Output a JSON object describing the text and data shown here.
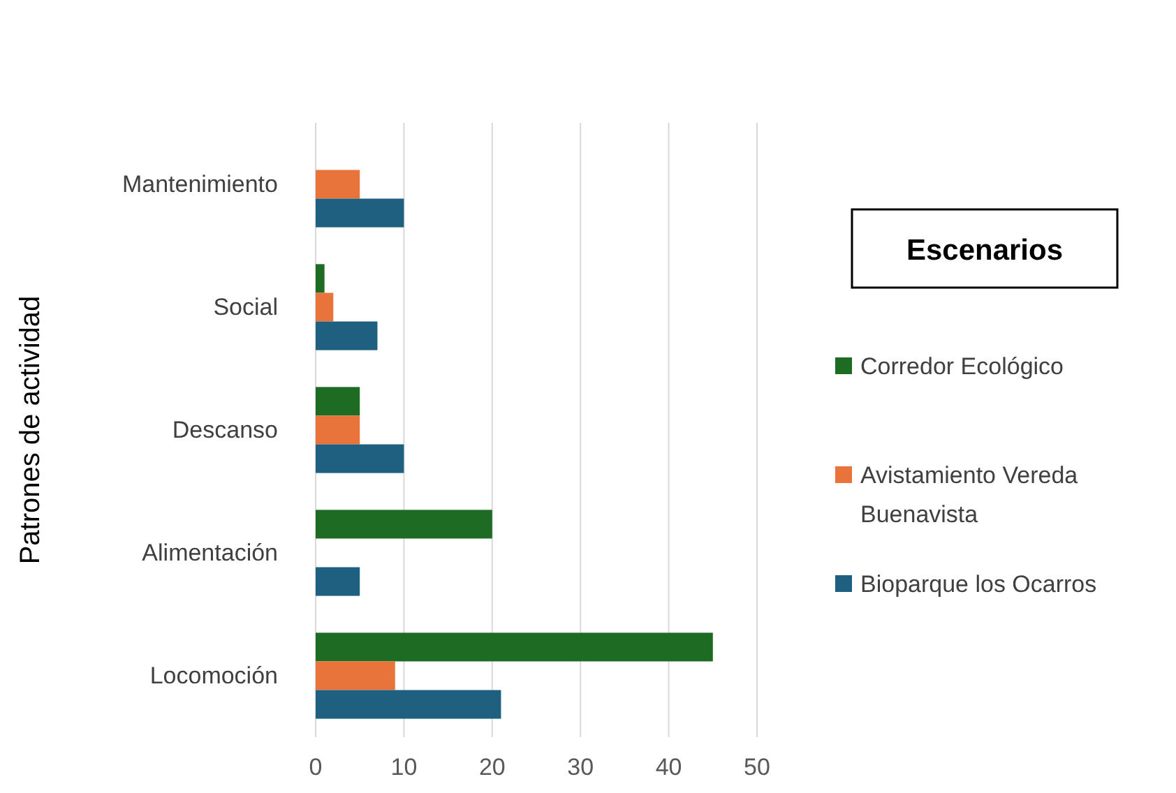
{
  "chart_data": {
    "type": "bar",
    "orientation": "horizontal",
    "ylabel": "Patrones de actividad",
    "legend_title": "Escenarios",
    "categories": [
      "Mantenimiento",
      "Social",
      "Descanso",
      "Alimentación",
      "Locomoción"
    ],
    "series": [
      {
        "name": "Corredor Ecológico",
        "color": "#1e6b24",
        "values": [
          null,
          1,
          5,
          20,
          45
        ]
      },
      {
        "name": "Avistamiento Vereda Buenavista",
        "color": "#e8743b",
        "values": [
          5,
          2,
          5,
          null,
          9
        ]
      },
      {
        "name": "Bioparque los Ocarros",
        "color": "#1f5f7f",
        "values": [
          10,
          7,
          10,
          5,
          21
        ]
      }
    ],
    "xlim": [
      0,
      50
    ],
    "xticks": [
      0,
      10,
      20,
      30,
      40,
      50
    ],
    "grid": "x",
    "legend": "right"
  }
}
